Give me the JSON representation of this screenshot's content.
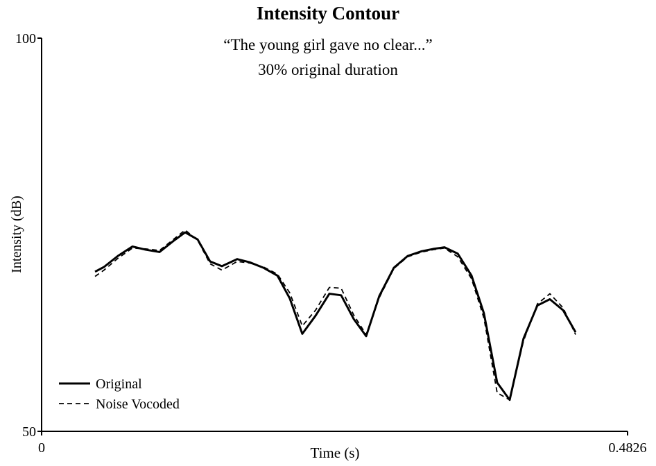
{
  "chart_data": {
    "type": "line",
    "title": "Intensity Contour",
    "subtitle": [
      "“The young girl gave no clear...”",
      "30% original duration"
    ],
    "xlabel": "Time (s)",
    "ylabel": "Intensity (dB)",
    "x": [
      0.044,
      0.0514,
      0.0628,
      0.0748,
      0.0857,
      0.0971,
      0.1085,
      0.1182,
      0.1285,
      0.1388,
      0.1485,
      0.1611,
      0.1713,
      0.1827,
      0.1942,
      0.2044,
      0.2147,
      0.2256,
      0.237,
      0.2467,
      0.257,
      0.2673,
      0.2781,
      0.2901,
      0.3015,
      0.313,
      0.3227,
      0.3318,
      0.3427,
      0.3541,
      0.3643,
      0.3752,
      0.3855,
      0.3969,
      0.4083,
      0.4186,
      0.4295,
      0.4398
    ],
    "series": [
      {
        "name": "Original",
        "color": "#000000",
        "dash": "solid",
        "values": [
          70.3,
          70.9,
          72.3,
          73.5,
          73.1,
          72.8,
          74.2,
          75.3,
          74.4,
          71.6,
          71.0,
          71.9,
          71.5,
          70.8,
          69.8,
          66.9,
          62.4,
          64.7,
          67.5,
          67.3,
          64.3,
          62.1,
          67.2,
          70.8,
          72.3,
          72.9,
          73.2,
          73.4,
          72.6,
          69.8,
          65.0,
          56.2,
          54.0,
          61.8,
          66.0,
          66.8,
          65.4,
          62.6
        ]
      },
      {
        "name": "Noise Vocoded",
        "color": "#000000",
        "dash": "dashed",
        "values": [
          69.7,
          70.5,
          72.0,
          73.3,
          73.2,
          73.0,
          74.4,
          75.6,
          74.3,
          71.3,
          70.5,
          71.6,
          71.4,
          70.9,
          70.0,
          67.6,
          63.4,
          65.4,
          68.3,
          68.2,
          64.8,
          62.3,
          67.0,
          70.7,
          72.2,
          72.8,
          73.1,
          73.3,
          72.2,
          69.4,
          64.4,
          54.9,
          54.0,
          61.5,
          66.2,
          67.5,
          65.7,
          62.3
        ]
      }
    ],
    "xlim": [
      0,
      0.4826
    ],
    "xticks": [
      0,
      0.4826
    ],
    "ylim": [
      50,
      100
    ],
    "yticks": [
      50,
      100
    ],
    "legend": "lower left"
  }
}
